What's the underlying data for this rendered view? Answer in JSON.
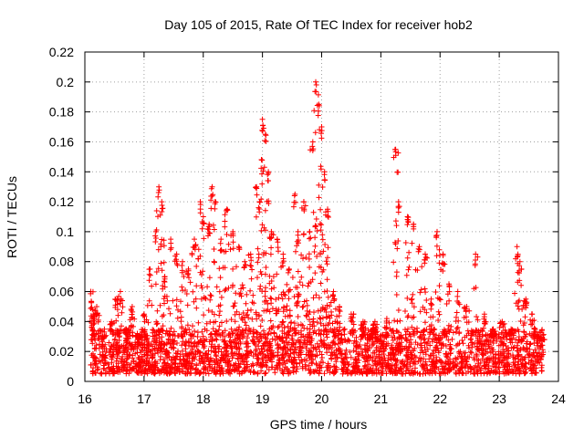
{
  "chart_data": {
    "type": "scatter",
    "title": "Day 105 of 2015, Rate Of TEC Index for receiver hob2",
    "xlabel": "GPS time / hours",
    "ylabel": "ROTI / TECUs",
    "xlim": [
      16,
      24
    ],
    "ylim": [
      0,
      0.22
    ],
    "xticks": [
      "16",
      "17",
      "18",
      "19",
      "20",
      "21",
      "22",
      "23",
      "24"
    ],
    "yticks": [
      "0",
      "0.02",
      "0.04",
      "0.06",
      "0.08",
      "0.1",
      "0.12",
      "0.14",
      "0.16",
      "0.18",
      "0.2",
      "0.22"
    ],
    "grid": true,
    "marker": "+",
    "color": "#ff0000",
    "series": [
      {
        "name": "hob2 ROTI",
        "x": [
          16.1,
          16.15,
          16.2,
          16.3,
          16.45,
          16.55,
          16.6,
          16.7,
          16.8,
          16.9,
          17.0,
          17.1,
          17.2,
          17.25,
          17.3,
          17.35,
          17.45,
          17.55,
          17.65,
          17.75,
          17.85,
          17.95,
          18.0,
          18.1,
          18.15,
          18.2,
          18.3,
          18.4,
          18.5,
          18.6,
          18.7,
          18.8,
          18.9,
          18.95,
          19.0,
          19.05,
          19.1,
          19.15,
          19.25,
          19.35,
          19.45,
          19.55,
          19.6,
          19.7,
          19.8,
          19.85,
          19.9,
          19.95,
          20.0,
          20.05,
          20.1,
          20.2,
          20.3,
          20.5,
          20.7,
          20.9,
          21.1,
          21.25,
          21.3,
          21.45,
          21.55,
          21.65,
          21.75,
          21.85,
          21.95,
          22.05,
          22.15,
          22.3,
          22.45,
          22.6,
          22.75,
          22.9,
          23.05,
          23.2,
          23.3,
          23.35,
          23.45,
          23.55,
          23.65,
          23.72
        ],
        "y": [
          0.06,
          0.045,
          0.05,
          0.03,
          0.04,
          0.055,
          0.06,
          0.035,
          0.05,
          0.03,
          0.045,
          0.075,
          0.1,
          0.13,
          0.12,
          0.07,
          0.095,
          0.085,
          0.08,
          0.075,
          0.095,
          0.12,
          0.11,
          0.105,
          0.13,
          0.12,
          0.095,
          0.115,
          0.1,
          0.09,
          0.08,
          0.085,
          0.13,
          0.12,
          0.175,
          0.165,
          0.14,
          0.1,
          0.095,
          0.085,
          0.075,
          0.125,
          0.1,
          0.12,
          0.1,
          0.16,
          0.2,
          0.185,
          0.17,
          0.14,
          0.115,
          0.06,
          0.05,
          0.045,
          0.04,
          0.04,
          0.042,
          0.155,
          0.12,
          0.11,
          0.105,
          0.09,
          0.085,
          0.055,
          0.1,
          0.085,
          0.065,
          0.06,
          0.05,
          0.085,
          0.045,
          0.035,
          0.04,
          0.035,
          0.09,
          0.08,
          0.055,
          0.045,
          0.03,
          0.028
        ]
      }
    ],
    "baseline_band": {
      "description_range": [
        0.005,
        0.035
      ],
      "x_range": [
        16.1,
        23.75
      ]
    }
  }
}
